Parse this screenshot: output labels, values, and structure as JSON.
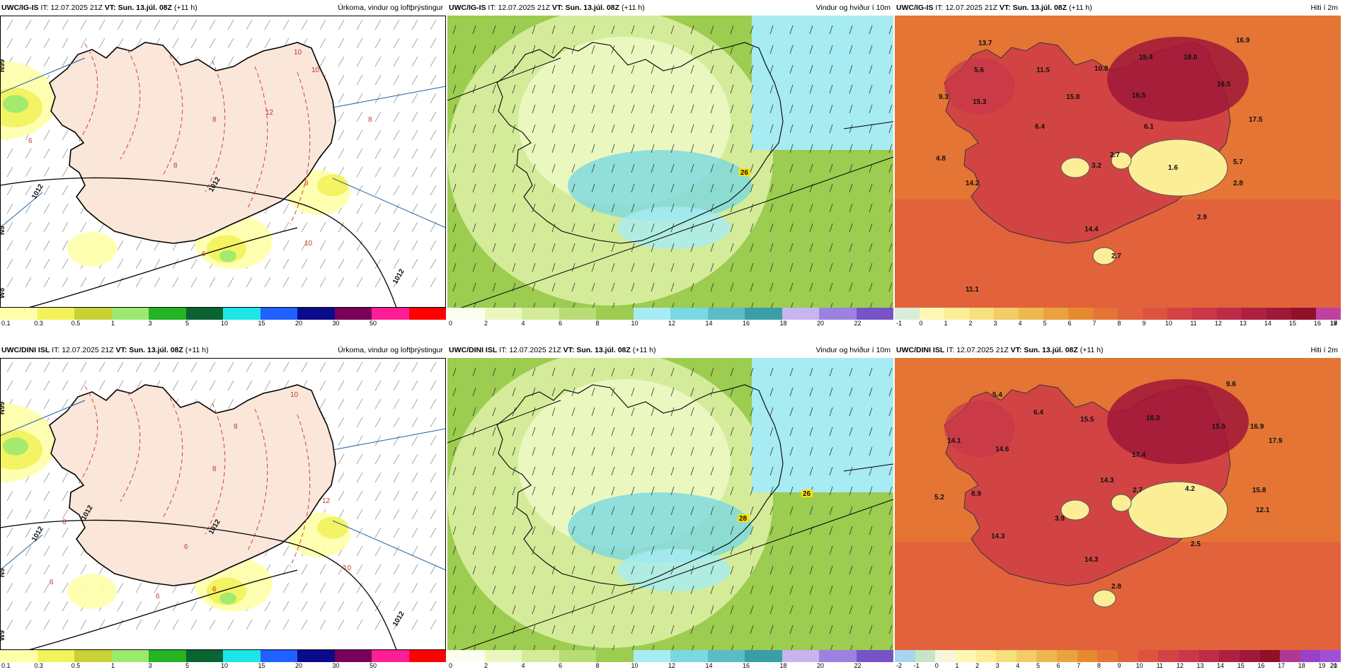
{
  "panels": [
    {
      "model": "UWC/IG-IS",
      "it_label": "IT:",
      "it": "12.07.2025 21Z",
      "vt_label": "VT:",
      "vt": "Sun. 13.júl. 08Z",
      "lead": "(+11 h)",
      "title": "Úrkoma, vindur og loftþrýstingur",
      "type": "precip"
    },
    {
      "model": "UWC/IG-IS",
      "it_label": "IT:",
      "it": "12.07.2025 21Z",
      "vt_label": "VT:",
      "vt": "Sun. 13.júl. 08Z",
      "lead": "(+11 h)",
      "title": "Vindur og hviður í 10m",
      "type": "wind"
    },
    {
      "model": "UWC/IG-IS",
      "it_label": "IT:",
      "it": "12.07.2025 21Z",
      "vt_label": "VT:",
      "vt": "Sun. 13.júl. 08Z",
      "lead": "(+11 h)",
      "title": "Hiti í 2m",
      "type": "temp"
    },
    {
      "model": "UWC/DINI ISL",
      "it_label": "IT:",
      "it": "12.07.2025 21Z",
      "vt_label": "VT:",
      "vt": "Sun. 13.júl. 08Z",
      "lead": "(+11 h)",
      "title": "Úrkoma, vindur og loftþrýstingur",
      "type": "precip"
    },
    {
      "model": "UWC/DINI ISL",
      "it_label": "IT:",
      "it": "12.07.2025 21Z",
      "vt_label": "VT:",
      "vt": "Sun. 13.júl. 08Z",
      "lead": "(+11 h)",
      "title": "Vindur og hviður í 10m",
      "type": "wind"
    },
    {
      "model": "UWC/DINI ISL",
      "it_label": "IT:",
      "it": "12.07.2025 21Z",
      "vt_label": "VT:",
      "vt": "Sun. 13.júl. 08Z",
      "lead": "(+11 h)",
      "title": "Hiti í 2m",
      "type": "temp"
    }
  ],
  "legends": {
    "precip": {
      "colors": [
        "#ffffaa",
        "#f2f25a",
        "#c8d232",
        "#9bea6e",
        "#24b424",
        "#0a6432",
        "#1ee6e6",
        "#2060ff",
        "#0a0a8c",
        "#78005a",
        "#ff1e96",
        "#ff0000"
      ],
      "ticks": [
        "0.1",
        "0.3",
        "0.5",
        "1",
        "3",
        "5",
        "10",
        "15",
        "20",
        "30",
        "50"
      ]
    },
    "wind": {
      "colors": [
        "#fafff0",
        "#eaf8c0",
        "#d4ec9a",
        "#b8dc76",
        "#9ccc50",
        "#a6ecf2",
        "#7ad8e0",
        "#5cbcc6",
        "#3a9ea8",
        "#c8b4f0",
        "#9c82e0",
        "#7654c8"
      ],
      "ticks": [
        "0",
        "2",
        "4",
        "6",
        "8",
        "10",
        "12",
        "14",
        "16",
        "18",
        "20",
        "22"
      ]
    },
    "temp_top": {
      "colors": [
        "#d8ecd8",
        "#fff8b4",
        "#fcee96",
        "#f8e07c",
        "#f2cc66",
        "#eeb850",
        "#eaa23c",
        "#e68a30",
        "#e47534",
        "#e2623c",
        "#dc5440",
        "#d24444",
        "#c83848",
        "#bc2c48",
        "#ae2040",
        "#a01838",
        "#901028",
        "#c040a0"
      ],
      "ticks": [
        "-1",
        "0",
        "1",
        "2",
        "3",
        "4",
        "5",
        "6",
        "7",
        "8",
        "9",
        "10",
        "11",
        "12",
        "13",
        "14",
        "15",
        "16",
        "17",
        "18",
        "19"
      ]
    },
    "temp_bot": {
      "colors": [
        "#a8d4f0",
        "#c8e4c8",
        "#f4f8d8",
        "#fff8b4",
        "#fcee96",
        "#f8e07c",
        "#f2cc66",
        "#eeb850",
        "#eaa23c",
        "#e68a30",
        "#e47534",
        "#e2623c",
        "#dc5440",
        "#d24444",
        "#c83848",
        "#bc2c48",
        "#ae2040",
        "#a01838",
        "#901028",
        "#b03890",
        "#9c40c8",
        "#a050d8"
      ],
      "ticks": [
        "-2",
        "-1",
        "0",
        "1",
        "2",
        "3",
        "4",
        "5",
        "6",
        "7",
        "8",
        "9",
        "10",
        "11",
        "12",
        "13",
        "14",
        "15",
        "16",
        "17",
        "18",
        "19",
        "20",
        "21"
      ]
    }
  },
  "precip_map": {
    "top": {
      "isobars": [
        "1012",
        "1012",
        "1012"
      ],
      "contour_values": [
        "10",
        "10",
        "12",
        "8",
        "8",
        "6",
        "6",
        "8",
        "10",
        "8"
      ],
      "lon_labels": [
        "N99",
        "N9",
        "W8"
      ]
    },
    "bot": {
      "isobars": [
        "1012",
        "1012",
        "1012",
        "1012"
      ],
      "contour_values": [
        "10",
        "8",
        "8",
        "12",
        "6",
        "6",
        "10",
        "6",
        "6",
        "6"
      ],
      "lon_labels": [
        "N99",
        "N9",
        "W9"
      ]
    }
  },
  "wind_map": {
    "top": {
      "gust_labels": [
        "26"
      ]
    },
    "bot": {
      "gust_labels": [
        "28",
        "26"
      ]
    }
  },
  "temp_map": {
    "top": {
      "values": [
        "13.7",
        "5.6",
        "11.5",
        "10.8",
        "15.4",
        "18.0",
        "16.9",
        "9.3",
        "15.3",
        "15.8",
        "16.5",
        "16.5",
        "17.5",
        "6.4",
        "6.1",
        "4.8",
        "3.2",
        "2.7",
        "1.6",
        "5.7",
        "14.2",
        "2.8",
        "2.9",
        "14.4",
        "2.7",
        "11.1"
      ]
    },
    "bot": {
      "values": [
        "5.4",
        "6.4",
        "15.5",
        "16.3",
        "9.6",
        "14.1",
        "14.6",
        "17.4",
        "15.5",
        "16.9",
        "17.9",
        "14.3",
        "15.8",
        "5.2",
        "8.9",
        "2.7",
        "4.2",
        "12.1",
        "3.9",
        "14.3",
        "2.5",
        "14.3",
        "2.8"
      ]
    }
  }
}
